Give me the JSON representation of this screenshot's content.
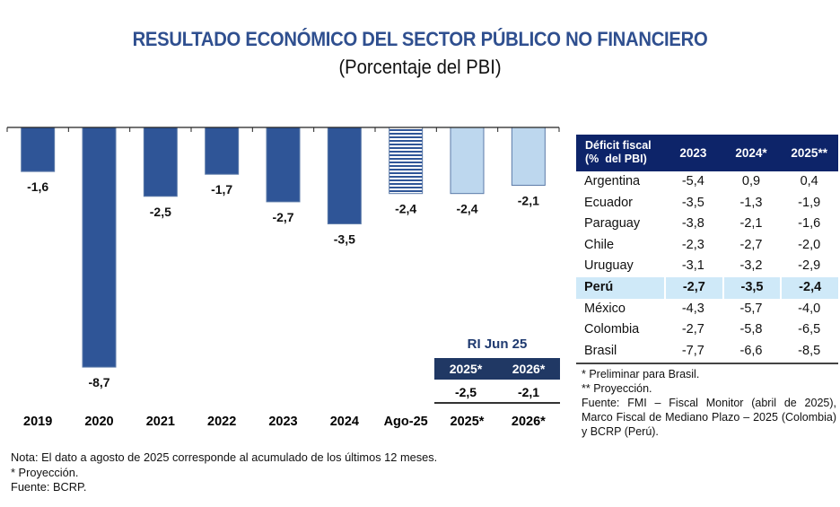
{
  "header": {
    "title": "RESULTADO ECONÓMICO DEL SECTOR PÚBLICO NO FINANCIERO",
    "subtitle": "(Porcentaje del PBI)"
  },
  "chart_data": {
    "type": "bar",
    "title": "RESULTADO ECONÓMICO DEL SECTOR PÚBLICO NO FINANCIERO",
    "subtitle": "(Porcentaje del PBI)",
    "xlabel": "",
    "ylabel": "",
    "categories": [
      "2019",
      "2020",
      "2021",
      "2022",
      "2023",
      "2024",
      "Ago-25",
      "2025*",
      "2026*"
    ],
    "values": [
      -1.6,
      -8.7,
      -2.5,
      -1.7,
      -2.7,
      -3.5,
      -2.4,
      -2.4,
      -2.1
    ],
    "value_labels": [
      "-1,6",
      "-8,7",
      "-2,5",
      "-1,7",
      "-2,7",
      "-3,5",
      "-2,4",
      "-2,4",
      "-2,1"
    ],
    "bar_styles": [
      "actual",
      "actual",
      "actual",
      "actual",
      "actual",
      "actual",
      "partial-year",
      "projection",
      "projection"
    ],
    "colors": {
      "actual": "#2f5597",
      "partial-year": "#2f5597",
      "projection": "#bdd7ee",
      "border": "#5b7aa8"
    },
    "ylim": [
      -8.7,
      0
    ],
    "grid": false,
    "legend": "none"
  },
  "ri_box": {
    "title": "RI Jun 25",
    "columns": [
      "2025*",
      "2026*"
    ],
    "values": [
      "-2,5",
      "-2,1"
    ]
  },
  "fiscal_table": {
    "header": {
      "label_line1": "Déficit fiscal",
      "label_line2": "(%  del PBI)",
      "columns": [
        "2023",
        "2024*",
        "2025**"
      ]
    },
    "rows": [
      {
        "country": "Argentina",
        "values": [
          "-5,4",
          "0,9",
          "0,4"
        ],
        "highlight": false
      },
      {
        "country": "Ecuador",
        "values": [
          "-3,5",
          "-1,3",
          "-1,9"
        ],
        "highlight": false
      },
      {
        "country": "Paraguay",
        "values": [
          "-3,8",
          "-2,1",
          "-1,6"
        ],
        "highlight": false
      },
      {
        "country": "Chile",
        "values": [
          "-2,3",
          "-2,7",
          "-2,0"
        ],
        "highlight": false
      },
      {
        "country": "Uruguay",
        "values": [
          "-3,1",
          "-3,2",
          "-2,9"
        ],
        "highlight": false
      },
      {
        "country": "Perú",
        "values": [
          "-2,7",
          "-3,5",
          "-2,4"
        ],
        "highlight": true
      },
      {
        "country": "México",
        "values": [
          "-4,3",
          "-5,7",
          "-4,0"
        ],
        "highlight": false
      },
      {
        "country": "Colombia",
        "values": [
          "-2,7",
          "-5,8",
          "-6,5"
        ],
        "highlight": false
      },
      {
        "country": "Brasil",
        "values": [
          "-7,7",
          "-6,6",
          "-8,5"
        ],
        "highlight": false
      }
    ],
    "notes": {
      "line1": "* Preliminar para Brasil.",
      "line2": "** Proyección.",
      "line3": "Fuente: FMI – Fiscal Monitor (abril de 2025), Marco Fiscal de Mediano Plazo – 2025 (Colombia) y BCRP (Perú)."
    }
  },
  "footer_notes": {
    "line1": "Nota: El dato a agosto de 2025 corresponde al acumulado de los últimos 12 meses.",
    "line2": "* Proyección.",
    "line3": "Fuente: BCRP."
  }
}
